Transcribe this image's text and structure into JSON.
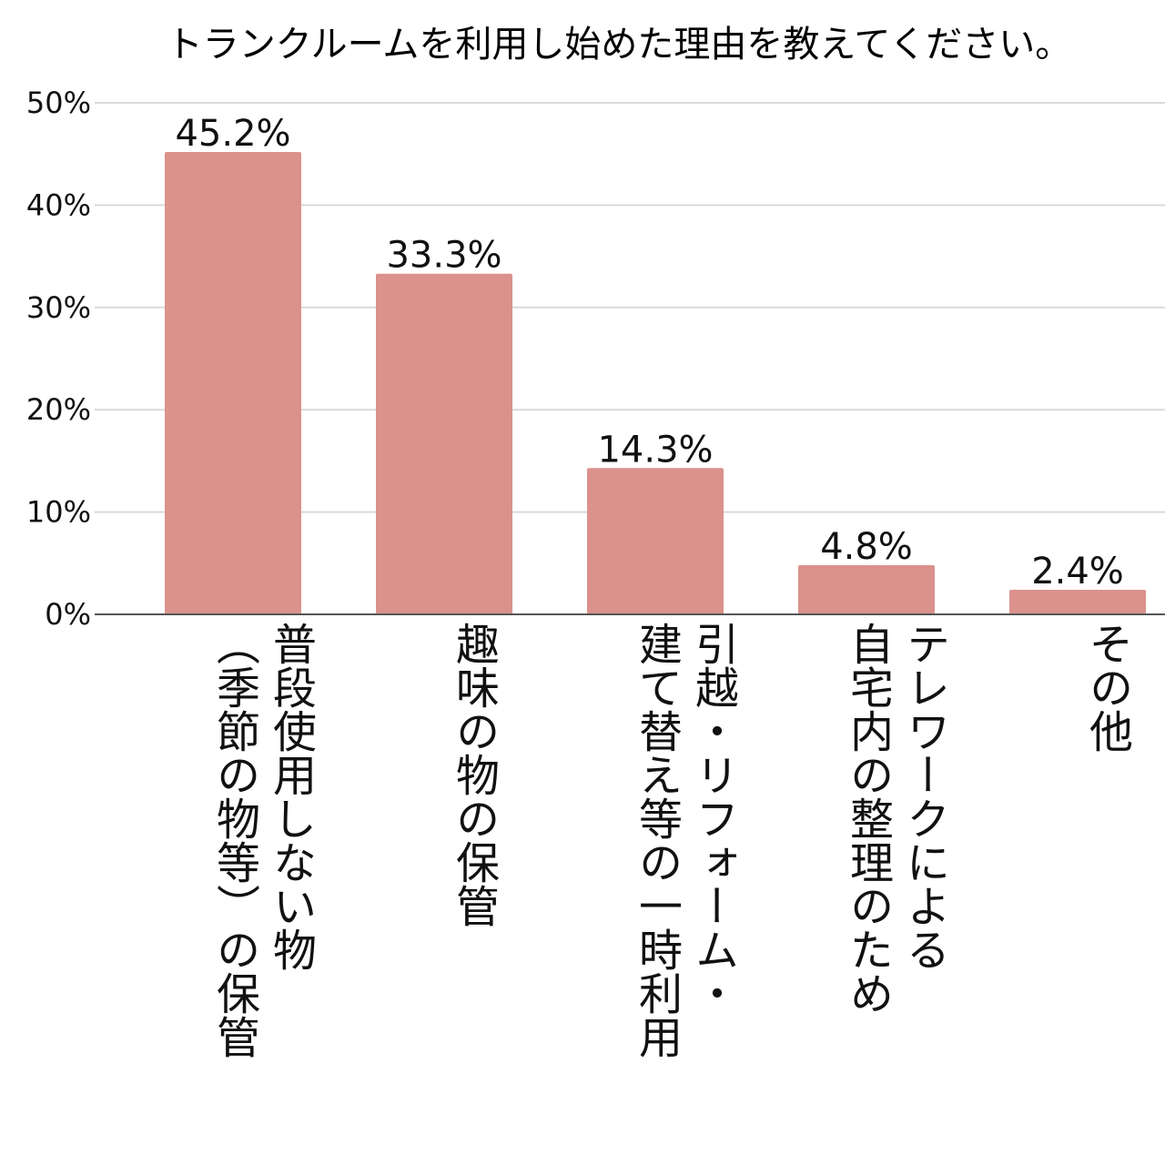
{
  "chart_data": {
    "type": "bar",
    "title": "トランクルームを利用し始めた理由を教えてください。",
    "categories": [
      [
        "普段使用しない物",
        "（季節の物等）の保管"
      ],
      [
        "趣味の物の保管"
      ],
      [
        "引越・リフォーム・",
        "建て替え等の一時利用"
      ],
      [
        "テレワークによる",
        "自宅内の整理のため"
      ],
      [
        "その他"
      ]
    ],
    "values": [
      45.2,
      33.3,
      14.3,
      4.8,
      2.4
    ],
    "data_labels": [
      "45.2%",
      "33.3%",
      "14.3%",
      "4.8%",
      "2.4%"
    ],
    "ylim": [
      0,
      50
    ],
    "yticks": [
      0,
      10,
      20,
      30,
      40,
      50
    ],
    "ytick_labels": [
      "0%",
      "10%",
      "20%",
      "30%",
      "40%",
      "50%"
    ],
    "xlabel": "",
    "ylabel": "",
    "grid": true,
    "legend": "none",
    "colors": {
      "bar": "#db918c",
      "grid": "#d9d9d9",
      "axis": "#555555",
      "text": "#111111"
    }
  }
}
